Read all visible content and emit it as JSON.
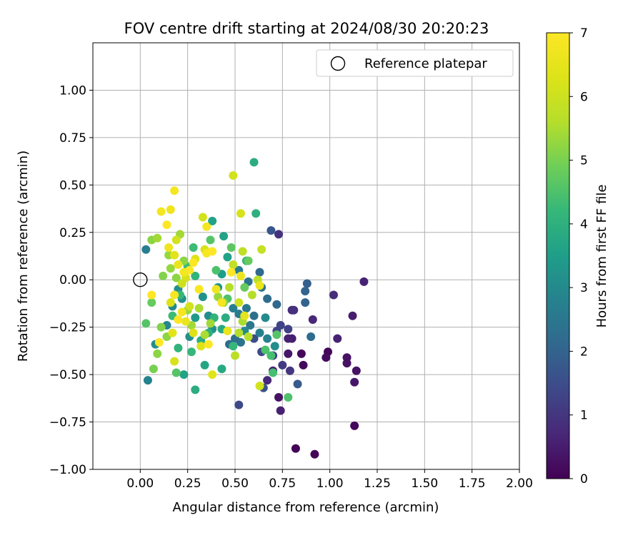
{
  "chart_data": {
    "type": "scatter",
    "title": "FOV centre drift starting at 2024/08/30 20:20:23",
    "xlabel": "Angular distance from reference (arcmin)",
    "ylabel": "Rotation from reference (arcmin)",
    "xlim": [
      -0.25,
      2.0
    ],
    "ylim": [
      -1.0,
      1.25
    ],
    "xticks": [
      "0.00",
      "0.25",
      "0.50",
      "0.75",
      "1.00",
      "1.25",
      "1.50",
      "1.75",
      "2.00"
    ],
    "yticks": [
      "−1.00",
      "−0.75",
      "−0.50",
      "−0.25",
      "0.00",
      "0.25",
      "0.50",
      "0.75",
      "1.00"
    ],
    "grid": true,
    "legend": {
      "position": "top-right",
      "entries": [
        "Reference platepar"
      ]
    },
    "colorbar": {
      "label": "Hours from first FF file",
      "range": [
        0,
        7
      ],
      "ticks": [
        "0",
        "1",
        "2",
        "3",
        "4",
        "5",
        "6",
        "7"
      ],
      "colormap": "viridis"
    },
    "reference_point": {
      "x": 0.0,
      "y": 0.0
    },
    "points": [
      {
        "x": 0.82,
        "y": -0.89,
        "c": 0.05
      },
      {
        "x": 0.92,
        "y": -0.92,
        "c": 0.05
      },
      {
        "x": 1.13,
        "y": -0.77,
        "c": 0.1
      },
      {
        "x": 0.85,
        "y": -0.39,
        "c": 0.1
      },
      {
        "x": 0.86,
        "y": -0.45,
        "c": 0.15
      },
      {
        "x": 0.99,
        "y": -0.38,
        "c": 0.1
      },
      {
        "x": 0.98,
        "y": -0.41,
        "c": 0.2
      },
      {
        "x": 1.09,
        "y": -0.41,
        "c": 0.3
      },
      {
        "x": 1.09,
        "y": -0.44,
        "c": 0.3
      },
      {
        "x": 1.14,
        "y": -0.48,
        "c": 0.3
      },
      {
        "x": 1.13,
        "y": -0.54,
        "c": 0.4
      },
      {
        "x": 0.78,
        "y": -0.39,
        "c": 0.4
      },
      {
        "x": 0.73,
        "y": -0.62,
        "c": 0.3
      },
      {
        "x": 0.74,
        "y": -0.69,
        "c": 0.6
      },
      {
        "x": 0.7,
        "y": -0.48,
        "c": 0.6
      },
      {
        "x": 0.67,
        "y": -0.53,
        "c": 0.7
      },
      {
        "x": 0.8,
        "y": -0.31,
        "c": 0.5
      },
      {
        "x": 0.78,
        "y": -0.31,
        "c": 0.6
      },
      {
        "x": 1.04,
        "y": -0.31,
        "c": 0.6
      },
      {
        "x": 1.18,
        "y": -0.01,
        "c": 0.6
      },
      {
        "x": 1.02,
        "y": -0.08,
        "c": 0.8
      },
      {
        "x": 1.12,
        "y": -0.19,
        "c": 0.5
      },
      {
        "x": 0.91,
        "y": -0.21,
        "c": 0.7
      },
      {
        "x": 0.8,
        "y": -0.16,
        "c": 0.8
      },
      {
        "x": 0.81,
        "y": -0.16,
        "c": 0.9
      },
      {
        "x": 0.73,
        "y": 0.24,
        "c": 0.9
      },
      {
        "x": 0.79,
        "y": -0.48,
        "c": 1.0
      },
      {
        "x": 0.75,
        "y": -0.45,
        "c": 1.1
      },
      {
        "x": 0.7,
        "y": -0.4,
        "c": 1.1
      },
      {
        "x": 0.78,
        "y": -0.26,
        "c": 1.2
      },
      {
        "x": 0.74,
        "y": -0.24,
        "c": 1.3
      },
      {
        "x": 0.72,
        "y": -0.27,
        "c": 1.3
      },
      {
        "x": 0.64,
        "y": -0.38,
        "c": 1.4
      },
      {
        "x": 0.6,
        "y": -0.31,
        "c": 1.5
      },
      {
        "x": 0.52,
        "y": -0.66,
        "c": 1.4
      },
      {
        "x": 0.65,
        "y": -0.57,
        "c": 1.6
      },
      {
        "x": 0.83,
        "y": -0.55,
        "c": 1.8
      },
      {
        "x": 0.69,
        "y": 0.26,
        "c": 1.7
      },
      {
        "x": 0.88,
        "y": -0.02,
        "c": 1.9
      },
      {
        "x": 0.87,
        "y": -0.06,
        "c": 2.0
      },
      {
        "x": 0.87,
        "y": -0.12,
        "c": 2.0
      },
      {
        "x": 0.9,
        "y": -0.3,
        "c": 2.2
      },
      {
        "x": 0.72,
        "y": -0.13,
        "c": 2.1
      },
      {
        "x": 0.67,
        "y": -0.1,
        "c": 2.2
      },
      {
        "x": 0.64,
        "y": -0.04,
        "c": 2.4
      },
      {
        "x": 0.63,
        "y": 0.04,
        "c": 2.1
      },
      {
        "x": 0.57,
        "y": -0.01,
        "c": 2.4
      },
      {
        "x": 0.52,
        "y": 0.05,
        "c": 2.6
      },
      {
        "x": 0.56,
        "y": -0.15,
        "c": 2.5
      },
      {
        "x": 0.6,
        "y": -0.19,
        "c": 2.3
      },
      {
        "x": 0.58,
        "y": -0.24,
        "c": 2.5
      },
      {
        "x": 0.53,
        "y": -0.33,
        "c": 2.4
      },
      {
        "x": 0.5,
        "y": -0.31,
        "c": 2.3
      },
      {
        "x": 0.47,
        "y": -0.34,
        "c": 2.2
      },
      {
        "x": 0.52,
        "y": -0.18,
        "c": 2.6
      },
      {
        "x": 0.49,
        "y": -0.15,
        "c": 2.7
      },
      {
        "x": 0.63,
        "y": -0.28,
        "c": 2.7
      },
      {
        "x": 0.67,
        "y": -0.31,
        "c": 2.8
      },
      {
        "x": 0.71,
        "y": -0.35,
        "c": 3.1
      },
      {
        "x": 0.66,
        "y": -0.2,
        "c": 3.0
      },
      {
        "x": 0.55,
        "y": -0.27,
        "c": 3.0
      },
      {
        "x": 0.03,
        "y": 0.16,
        "c": 2.7
      },
      {
        "x": 0.04,
        "y": -0.53,
        "c": 2.8
      },
      {
        "x": 0.08,
        "y": -0.34,
        "c": 3.1
      },
      {
        "x": 0.14,
        "y": -0.24,
        "c": 2.9
      },
      {
        "x": 0.17,
        "y": -0.14,
        "c": 3.0
      },
      {
        "x": 0.2,
        "y": -0.05,
        "c": 3.1
      },
      {
        "x": 0.22,
        "y": -0.1,
        "c": 3.2
      },
      {
        "x": 0.26,
        "y": -0.3,
        "c": 3.1
      },
      {
        "x": 0.29,
        "y": -0.2,
        "c": 3.4
      },
      {
        "x": 0.33,
        "y": -0.09,
        "c": 3.2
      },
      {
        "x": 0.36,
        "y": -0.19,
        "c": 3.1
      },
      {
        "x": 0.38,
        "y": -0.26,
        "c": 3.2
      },
      {
        "x": 0.41,
        "y": -0.04,
        "c": 3.3
      },
      {
        "x": 0.43,
        "y": 0.03,
        "c": 3.5
      },
      {
        "x": 0.44,
        "y": 0.23,
        "c": 3.6
      },
      {
        "x": 0.38,
        "y": 0.31,
        "c": 3.6
      },
      {
        "x": 0.46,
        "y": 0.12,
        "c": 3.6
      },
      {
        "x": 0.6,
        "y": 0.62,
        "c": 3.9
      },
      {
        "x": 0.61,
        "y": 0.35,
        "c": 4.0
      },
      {
        "x": 0.56,
        "y": 0.1,
        "c": 4.1
      },
      {
        "x": 0.43,
        "y": -0.26,
        "c": 3.8
      },
      {
        "x": 0.45,
        "y": -0.2,
        "c": 3.9
      },
      {
        "x": 0.23,
        "y": -0.5,
        "c": 3.6
      },
      {
        "x": 0.29,
        "y": -0.58,
        "c": 3.9
      },
      {
        "x": 0.34,
        "y": -0.45,
        "c": 3.7
      },
      {
        "x": 0.43,
        "y": -0.47,
        "c": 3.8
      },
      {
        "x": 0.32,
        "y": -0.32,
        "c": 3.9
      },
      {
        "x": 0.36,
        "y": -0.28,
        "c": 4.0
      },
      {
        "x": 0.39,
        "y": -0.2,
        "c": 4.1
      },
      {
        "x": 0.27,
        "y": -0.38,
        "c": 4.2
      },
      {
        "x": 0.2,
        "y": -0.36,
        "c": 4.1
      },
      {
        "x": 0.28,
        "y": 0.17,
        "c": 4.3
      },
      {
        "x": 0.25,
        "y": 0.07,
        "c": 4.3
      },
      {
        "x": 0.29,
        "y": 0.02,
        "c": 4.1
      },
      {
        "x": 0.21,
        "y": -0.08,
        "c": 4.2
      },
      {
        "x": 0.17,
        "y": -0.19,
        "c": 4.3
      },
      {
        "x": 0.19,
        "y": -0.49,
        "c": 4.6
      },
      {
        "x": 0.7,
        "y": -0.49,
        "c": 4.4
      },
      {
        "x": 0.78,
        "y": -0.62,
        "c": 4.5
      },
      {
        "x": 0.66,
        "y": -0.37,
        "c": 4.5
      },
      {
        "x": 0.69,
        "y": -0.4,
        "c": 4.4
      },
      {
        "x": 0.72,
        "y": -0.29,
        "c": 4.6
      },
      {
        "x": 0.49,
        "y": -0.35,
        "c": 4.2
      },
      {
        "x": 0.46,
        "y": -0.1,
        "c": 4.5
      },
      {
        "x": 0.4,
        "y": 0.05,
        "c": 4.5
      },
      {
        "x": 0.37,
        "y": 0.21,
        "c": 4.6
      },
      {
        "x": 0.48,
        "y": 0.17,
        "c": 4.7
      },
      {
        "x": 0.57,
        "y": 0.1,
        "c": 4.8
      },
      {
        "x": 0.55,
        "y": -0.04,
        "c": 4.8
      },
      {
        "x": 0.03,
        "y": -0.23,
        "c": 4.6
      },
      {
        "x": 0.06,
        "y": -0.12,
        "c": 4.8
      },
      {
        "x": 0.07,
        "y": -0.47,
        "c": 5.0
      },
      {
        "x": 0.09,
        "y": -0.39,
        "c": 5.2
      },
      {
        "x": 0.11,
        "y": -0.25,
        "c": 5.1
      },
      {
        "x": 0.14,
        "y": -0.3,
        "c": 5.2
      },
      {
        "x": 0.15,
        "y": 0.13,
        "c": 5.3
      },
      {
        "x": 0.06,
        "y": 0.21,
        "c": 5.2
      },
      {
        "x": 0.09,
        "y": 0.22,
        "c": 5.4
      },
      {
        "x": 0.12,
        "y": 0.02,
        "c": 5.1
      },
      {
        "x": 0.16,
        "y": 0.06,
        "c": 5.3
      },
      {
        "x": 0.19,
        "y": 0.01,
        "c": 5.2
      },
      {
        "x": 0.21,
        "y": 0.24,
        "c": 5.4
      },
      {
        "x": 0.23,
        "y": 0.1,
        "c": 5.2
      },
      {
        "x": 0.25,
        "y": -0.16,
        "c": 5.3
      },
      {
        "x": 0.27,
        "y": -0.24,
        "c": 5.4
      },
      {
        "x": 0.31,
        "y": -0.15,
        "c": 5.5
      },
      {
        "x": 0.34,
        "y": -0.29,
        "c": 5.5
      },
      {
        "x": 0.37,
        "y": -0.23,
        "c": 5.4
      },
      {
        "x": 0.41,
        "y": -0.09,
        "c": 5.3
      },
      {
        "x": 0.44,
        "y": -0.12,
        "c": 5.2
      },
      {
        "x": 0.47,
        "y": -0.04,
        "c": 5.6
      },
      {
        "x": 0.52,
        "y": -0.28,
        "c": 5.6
      },
      {
        "x": 0.54,
        "y": -0.22,
        "c": 5.5
      },
      {
        "x": 0.57,
        "y": -0.3,
        "c": 5.7
      },
      {
        "x": 0.5,
        "y": -0.4,
        "c": 5.7
      },
      {
        "x": 0.59,
        "y": -0.08,
        "c": 5.6
      },
      {
        "x": 0.62,
        "y": 0.0,
        "c": 5.7
      },
      {
        "x": 0.64,
        "y": 0.16,
        "c": 5.9
      },
      {
        "x": 0.54,
        "y": 0.15,
        "c": 5.8
      },
      {
        "x": 0.49,
        "y": 0.08,
        "c": 5.8
      },
      {
        "x": 0.52,
        "y": -0.12,
        "c": 6.0
      },
      {
        "x": 0.63,
        "y": -0.56,
        "c": 6.1
      },
      {
        "x": 0.49,
        "y": 0.55,
        "c": 6.1
      },
      {
        "x": 0.53,
        "y": 0.35,
        "c": 6.2
      },
      {
        "x": 0.33,
        "y": 0.33,
        "c": 6.1
      },
      {
        "x": 0.34,
        "y": 0.16,
        "c": 6.2
      },
      {
        "x": 0.29,
        "y": 0.11,
        "c": 6.3
      },
      {
        "x": 0.24,
        "y": 0.01,
        "c": 6.2
      },
      {
        "x": 0.22,
        "y": -0.02,
        "c": 6.0
      },
      {
        "x": 0.26,
        "y": -0.14,
        "c": 6.1
      },
      {
        "x": 0.28,
        "y": -0.28,
        "c": 6.3
      },
      {
        "x": 0.32,
        "y": -0.35,
        "c": 6.3
      },
      {
        "x": 0.38,
        "y": -0.5,
        "c": 6.4
      },
      {
        "x": 0.18,
        "y": -0.43,
        "c": 6.2
      },
      {
        "x": 0.17,
        "y": -0.28,
        "c": 6.4
      },
      {
        "x": 0.16,
        "y": -0.12,
        "c": 6.3
      },
      {
        "x": 0.18,
        "y": 0.13,
        "c": 6.4
      },
      {
        "x": 0.19,
        "y": 0.21,
        "c": 6.1
      },
      {
        "x": 0.16,
        "y": 0.37,
        "c": 6.7
      },
      {
        "x": 0.11,
        "y": 0.36,
        "c": 6.8
      },
      {
        "x": 0.18,
        "y": 0.47,
        "c": 6.8
      },
      {
        "x": 0.14,
        "y": 0.29,
        "c": 7.0
      },
      {
        "x": 0.15,
        "y": 0.17,
        "c": 6.7
      },
      {
        "x": 0.2,
        "y": 0.08,
        "c": 6.6
      },
      {
        "x": 0.23,
        "y": 0.04,
        "c": 6.8
      },
      {
        "x": 0.26,
        "y": 0.05,
        "c": 7.0
      },
      {
        "x": 0.28,
        "y": 0.09,
        "c": 7.0
      },
      {
        "x": 0.35,
        "y": 0.14,
        "c": 6.9
      },
      {
        "x": 0.38,
        "y": 0.15,
        "c": 7.0
      },
      {
        "x": 0.35,
        "y": 0.28,
        "c": 6.8
      },
      {
        "x": 0.06,
        "y": -0.08,
        "c": 7.0
      },
      {
        "x": 0.18,
        "y": -0.08,
        "c": 6.9
      },
      {
        "x": 0.2,
        "y": -0.21,
        "c": 7.0
      },
      {
        "x": 0.22,
        "y": -0.17,
        "c": 6.8
      },
      {
        "x": 0.24,
        "y": -0.22,
        "c": 6.6
      },
      {
        "x": 0.1,
        "y": -0.33,
        "c": 7.0
      },
      {
        "x": 0.36,
        "y": -0.34,
        "c": 7.0
      },
      {
        "x": 0.31,
        "y": -0.05,
        "c": 6.9
      },
      {
        "x": 0.4,
        "y": -0.05,
        "c": 6.7
      },
      {
        "x": 0.43,
        "y": -0.12,
        "c": 6.8
      },
      {
        "x": 0.46,
        "y": -0.27,
        "c": 6.6
      },
      {
        "x": 0.48,
        "y": 0.04,
        "c": 7.0
      },
      {
        "x": 0.53,
        "y": 0.02,
        "c": 6.6
      },
      {
        "x": 0.63,
        "y": -0.03,
        "c": 6.6
      },
      {
        "x": 0.55,
        "y": -0.19,
        "c": 6.5
      }
    ]
  }
}
